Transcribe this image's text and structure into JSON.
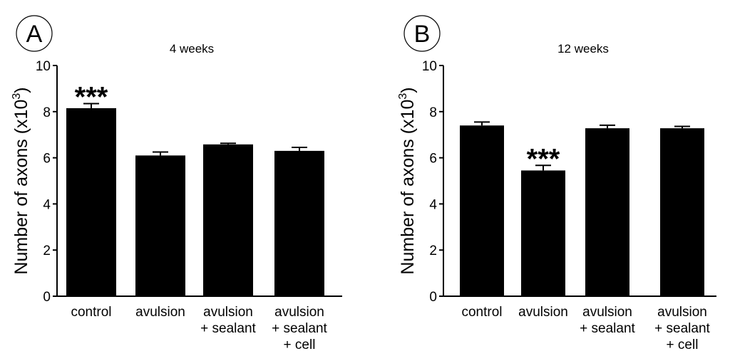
{
  "colors": {
    "bar": "#000000",
    "axis": "#000000",
    "background": "#ffffff"
  },
  "chart_data": [
    {
      "type": "bar",
      "panel": "A",
      "title": "4 weeks",
      "ylabel": "Number of axons (x10",
      "ylabel_sup": "3",
      "ylabel_end": ")",
      "ylim": [
        0,
        10
      ],
      "yticks": [
        "0",
        "2",
        "4",
        "6",
        "8",
        "10"
      ],
      "categories": [
        [
          "control"
        ],
        [
          "avulsion"
        ],
        [
          "avulsion",
          "+ sealant"
        ],
        [
          "avulsion",
          "+ sealant",
          "+ cell"
        ]
      ],
      "values": [
        8.15,
        6.1,
        6.58,
        6.3
      ],
      "errors": [
        0.2,
        0.15,
        0.05,
        0.15
      ],
      "annotations": [
        {
          "category_index": 0,
          "text": "***"
        }
      ]
    },
    {
      "type": "bar",
      "panel": "B",
      "title": "12 weeks",
      "ylabel": "Number of axons (x10",
      "ylabel_sup": "3",
      "ylabel_end": ")",
      "ylim": [
        0,
        10
      ],
      "yticks": [
        "0",
        "2",
        "4",
        "6",
        "8",
        "10"
      ],
      "categories": [
        [
          "control"
        ],
        [
          "avulsion"
        ],
        [
          "avulsion",
          "+ sealant"
        ],
        [
          "avulsion",
          "+ sealant",
          "+ cell"
        ]
      ],
      "values": [
        7.4,
        5.45,
        7.28,
        7.28
      ],
      "errors": [
        0.15,
        0.22,
        0.13,
        0.08
      ],
      "annotations": [
        {
          "category_index": 1,
          "text": "***"
        }
      ]
    }
  ]
}
